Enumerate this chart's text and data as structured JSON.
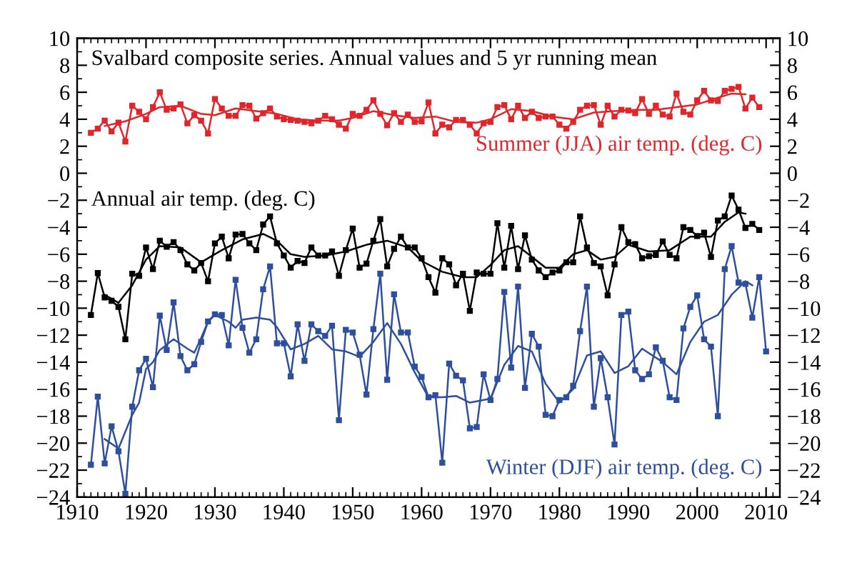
{
  "chart_data": {
    "type": "line",
    "title": "Svalbard composite series. Annual values and 5 yr running mean",
    "xlim": [
      1910,
      2012
    ],
    "xticks": [
      1910,
      1920,
      1930,
      1940,
      1950,
      1960,
      1970,
      1980,
      1990,
      2000,
      2010
    ],
    "ylim": [
      -24,
      10
    ],
    "yticks": [
      -24,
      -22,
      -20,
      -18,
      -16,
      -14,
      -12,
      -10,
      -8,
      -6,
      -4,
      -2,
      0,
      2,
      4,
      6,
      8,
      10
    ],
    "y2lim": [
      -24,
      10
    ],
    "y2ticks": [
      -24,
      -22,
      -20,
      -18,
      -16,
      -14,
      -12,
      -10,
      -8,
      -6,
      -4,
      -2,
      0,
      2,
      4,
      6,
      8,
      10
    ],
    "grid": false,
    "legend": false,
    "series": [
      {
        "name": "Summer (JJA) air temp. (deg. C)",
        "color": "#e0262b",
        "marker": "square",
        "x": [
          1912,
          1913,
          1914,
          1915,
          1916,
          1917,
          1918,
          1919,
          1920,
          1921,
          1922,
          1923,
          1924,
          1925,
          1926,
          1927,
          1928,
          1929,
          1930,
          1931,
          1932,
          1933,
          1934,
          1935,
          1936,
          1937,
          1938,
          1939,
          1940,
          1941,
          1942,
          1943,
          1944,
          1945,
          1946,
          1947,
          1948,
          1949,
          1950,
          1951,
          1952,
          1953,
          1954,
          1955,
          1956,
          1957,
          1958,
          1959,
          1960,
          1961,
          1962,
          1963,
          1964,
          1965,
          1966,
          1967,
          1968,
          1969,
          1970,
          1971,
          1972,
          1973,
          1974,
          1975,
          1976,
          1977,
          1978,
          1979,
          1980,
          1981,
          1982,
          1983,
          1984,
          1985,
          1986,
          1987,
          1988,
          1989,
          1990,
          1991,
          1992,
          1993,
          1994,
          1995,
          1996,
          1997,
          1998,
          1999,
          2000,
          2001,
          2002,
          2003,
          2004,
          2005,
          2006,
          2007,
          2008,
          2009
        ],
        "values": [
          3.0,
          3.3,
          3.9,
          3.1,
          3.75,
          2.35,
          5.0,
          4.55,
          4.0,
          4.9,
          6.0,
          4.7,
          4.8,
          5.1,
          3.7,
          4.3,
          3.9,
          2.95,
          5.5,
          4.8,
          4.25,
          4.25,
          5.05,
          5.0,
          4.05,
          4.45,
          4.8,
          4.2,
          4.0,
          3.95,
          3.9,
          3.8,
          3.7,
          3.9,
          4.25,
          4.0,
          3.6,
          3.3,
          4.4,
          4.25,
          4.7,
          5.4,
          4.4,
          3.55,
          4.45,
          3.8,
          4.35,
          3.8,
          3.85,
          5.25,
          2.95,
          3.6,
          3.4,
          3.95,
          3.95,
          3.6,
          2.95,
          3.7,
          3.8,
          4.9,
          5.05,
          4.0,
          5.0,
          4.1,
          4.55,
          4.1,
          4.2,
          4.2,
          3.6,
          3.3,
          3.8,
          4.7,
          5.0,
          5.05,
          3.6,
          5.0,
          4.2,
          4.7,
          4.65,
          4.45,
          5.5,
          4.4,
          5.0,
          4.35,
          4.2,
          5.9,
          4.55,
          4.35,
          5.4,
          6.1,
          5.4,
          5.35,
          6.1,
          6.25,
          6.4,
          4.8,
          5.6,
          4.9
        ]
      },
      {
        "color": "#e0262b",
        "marker": "none",
        "x": [
          1914,
          1917,
          1920,
          1922,
          1925,
          1928,
          1930,
          1933,
          1936,
          1939,
          1942,
          1945,
          1948,
          1950,
          1953,
          1956,
          1959,
          1962,
          1965,
          1968,
          1970,
          1973,
          1976,
          1979,
          1982,
          1985,
          1988,
          1991,
          1994,
          1997,
          2000,
          2003,
          2005,
          2007
        ],
        "values": [
          3.5,
          3.85,
          4.4,
          4.9,
          5.0,
          4.4,
          4.3,
          4.8,
          4.6,
          4.4,
          4.0,
          3.9,
          3.9,
          4.1,
          4.6,
          4.3,
          4.1,
          4.2,
          3.8,
          3.75,
          4.0,
          4.75,
          4.6,
          4.2,
          4.0,
          4.5,
          4.6,
          4.7,
          4.7,
          4.9,
          5.1,
          5.6,
          5.9,
          5.85
        ]
      },
      {
        "name": "Annual air temp. (deg. C)",
        "color": "#000000",
        "marker": "square",
        "x": [
          1912,
          1913,
          1914,
          1915,
          1916,
          1917,
          1918,
          1919,
          1920,
          1921,
          1922,
          1923,
          1924,
          1925,
          1926,
          1927,
          1928,
          1929,
          1930,
          1931,
          1932,
          1933,
          1934,
          1935,
          1936,
          1937,
          1938,
          1939,
          1940,
          1941,
          1942,
          1943,
          1944,
          1945,
          1946,
          1947,
          1948,
          1949,
          1950,
          1951,
          1952,
          1953,
          1954,
          1955,
          1956,
          1957,
          1958,
          1959,
          1960,
          1961,
          1962,
          1963,
          1964,
          1965,
          1966,
          1967,
          1968,
          1969,
          1970,
          1971,
          1972,
          1973,
          1974,
          1975,
          1976,
          1977,
          1978,
          1979,
          1980,
          1981,
          1982,
          1983,
          1984,
          1985,
          1986,
          1987,
          1988,
          1989,
          1990,
          1991,
          1992,
          1993,
          1994,
          1995,
          1996,
          1997,
          1998,
          1999,
          2000,
          2001,
          2002,
          2003,
          2004,
          2005,
          2006,
          2007,
          2008,
          2009
        ],
        "values": [
          -10.5,
          -7.4,
          -9.2,
          -9.45,
          -9.9,
          -12.3,
          -7.45,
          -7.6,
          -5.5,
          -7.1,
          -5.0,
          -5.45,
          -5.1,
          -5.7,
          -6.75,
          -7.2,
          -6.65,
          -8.0,
          -5.2,
          -4.7,
          -6.3,
          -4.55,
          -4.5,
          -5.2,
          -5.7,
          -3.8,
          -3.2,
          -5.2,
          -6.1,
          -7.0,
          -6.5,
          -6.65,
          -5.5,
          -6.1,
          -6.1,
          -5.8,
          -7.6,
          -5.7,
          -4.1,
          -7.0,
          -6.7,
          -5.0,
          -3.4,
          -6.9,
          -5.6,
          -4.7,
          -5.5,
          -5.5,
          -6.3,
          -7.7,
          -8.85,
          -6.3,
          -6.75,
          -8.3,
          -7.45,
          -10.2,
          -7.35,
          -7.45,
          -7.45,
          -3.7,
          -7.0,
          -3.9,
          -7.1,
          -4.6,
          -6.4,
          -7.2,
          -7.7,
          -7.35,
          -7.2,
          -6.6,
          -6.6,
          -3.2,
          -5.5,
          -6.65,
          -6.9,
          -9.05,
          -6.75,
          -4.0,
          -5.1,
          -5.25,
          -6.3,
          -6.15,
          -6.05,
          -5.05,
          -6.05,
          -6.3,
          -4.0,
          -4.2,
          -4.65,
          -4.4,
          -6.2,
          -3.5,
          -3.2,
          -1.65,
          -2.7,
          -4.05,
          -3.75,
          -4.2
        ]
      },
      {
        "color": "#000000",
        "marker": "none",
        "x": [
          1914,
          1916,
          1918,
          1920,
          1922,
          1925,
          1928,
          1931,
          1934,
          1937,
          1939,
          1941,
          1943,
          1946,
          1949,
          1952,
          1955,
          1958,
          1960,
          1963,
          1966,
          1968,
          1970,
          1972,
          1974,
          1976,
          1978,
          1980,
          1982,
          1984,
          1986,
          1988,
          1990,
          1993,
          1996,
          1999,
          2002,
          2004,
          2006,
          2007
        ],
        "values": [
          -9.0,
          -9.6,
          -8.3,
          -6.4,
          -5.4,
          -5.5,
          -6.6,
          -5.7,
          -4.9,
          -4.5,
          -5.0,
          -6.0,
          -6.2,
          -6.1,
          -5.8,
          -5.3,
          -5.0,
          -5.5,
          -6.5,
          -7.3,
          -7.7,
          -7.7,
          -6.8,
          -5.7,
          -5.4,
          -6.2,
          -7.0,
          -7.0,
          -6.0,
          -5.7,
          -6.4,
          -6.2,
          -5.3,
          -5.8,
          -5.7,
          -4.7,
          -4.7,
          -3.6,
          -2.9,
          -3.0
        ]
      },
      {
        "name": "Winter (DJF) air temp. (deg. C)",
        "color": "#2d4f9e",
        "marker": "square",
        "x": [
          1912,
          1913,
          1914,
          1915,
          1916,
          1917,
          1918,
          1919,
          1920,
          1921,
          1922,
          1923,
          1924,
          1925,
          1926,
          1927,
          1928,
          1929,
          1930,
          1931,
          1932,
          1933,
          1934,
          1935,
          1936,
          1937,
          1938,
          1939,
          1940,
          1941,
          1942,
          1943,
          1944,
          1945,
          1946,
          1947,
          1948,
          1949,
          1950,
          1951,
          1952,
          1953,
          1954,
          1955,
          1956,
          1957,
          1958,
          1959,
          1960,
          1961,
          1962,
          1963,
          1964,
          1965,
          1966,
          1967,
          1968,
          1969,
          1970,
          1971,
          1972,
          1973,
          1974,
          1975,
          1976,
          1977,
          1978,
          1979,
          1980,
          1981,
          1982,
          1983,
          1984,
          1985,
          1986,
          1987,
          1988,
          1989,
          1990,
          1991,
          1992,
          1993,
          1994,
          1995,
          1996,
          1997,
          1998,
          1999,
          2000,
          2001,
          2002,
          2003,
          2004,
          2005,
          2006,
          2007,
          2008,
          2009,
          2010
        ],
        "values": [
          -21.6,
          -16.55,
          -21.5,
          -18.75,
          -20.6,
          -23.75,
          -17.3,
          -14.6,
          -13.75,
          -15.85,
          -10.55,
          -13.1,
          -9.57,
          -13.55,
          -14.6,
          -14.15,
          -12.5,
          -10.98,
          -10.45,
          -10.5,
          -12.75,
          -7.9,
          -11.45,
          -13.3,
          -12.3,
          -8.6,
          -6.9,
          -12.6,
          -12.6,
          -15.05,
          -11.2,
          -13.9,
          -11.2,
          -11.7,
          -12.05,
          -11.3,
          -18.3,
          -11.6,
          -11.8,
          -13.45,
          -16.4,
          -11.55,
          -7.45,
          -15.3,
          -8.97,
          -11.8,
          -11.8,
          -14.33,
          -15.1,
          -16.6,
          -16.45,
          -21.45,
          -14.1,
          -15.0,
          -15.35,
          -18.9,
          -18.8,
          -14.9,
          -16.8,
          -15.25,
          -8.8,
          -14.4,
          -8.4,
          -15.9,
          -11.9,
          -12.85,
          -17.9,
          -18.0,
          -16.8,
          -16.6,
          -15.75,
          -11.7,
          -8.4,
          -17.3,
          -13.7,
          -16.6,
          -20.1,
          -10.5,
          -10.25,
          -14.6,
          -15.25,
          -14.9,
          -12.9,
          -13.9,
          -16.6,
          -16.8,
          -11.5,
          -9.9,
          -9.05,
          -12.3,
          -12.85,
          -18.0,
          -7.1,
          -5.4,
          -8.1,
          -8.2,
          -10.7,
          -7.7,
          -13.2
        ]
      },
      {
        "color": "#2d4f9e",
        "marker": "none",
        "x": [
          1914,
          1916,
          1918,
          1919,
          1920,
          1921,
          1922,
          1923,
          1924,
          1926,
          1927,
          1928,
          1929,
          1930,
          1932,
          1933,
          1934,
          1936,
          1938,
          1939,
          1941,
          1943,
          1945,
          1947,
          1949,
          1951,
          1953,
          1955,
          1957,
          1959,
          1961,
          1963,
          1965,
          1967,
          1970,
          1972,
          1974,
          1976,
          1978,
          1980,
          1982,
          1984,
          1986,
          1988,
          1990,
          1992,
          1995,
          1997,
          1999,
          2001,
          2003,
          2005,
          2007,
          2008
        ],
        "values": [
          -19.7,
          -20.4,
          -17.9,
          -17.0,
          -14.5,
          -14.0,
          -13.1,
          -12.7,
          -12.3,
          -13.0,
          -13.3,
          -12.2,
          -11.0,
          -10.5,
          -11.0,
          -11.45,
          -10.85,
          -10.7,
          -10.85,
          -11.4,
          -13.05,
          -12.65,
          -12.05,
          -13.05,
          -13.2,
          -13.6,
          -12.5,
          -11.1,
          -12.65,
          -14.75,
          -16.6,
          -16.6,
          -16.5,
          -17.0,
          -16.7,
          -14.2,
          -12.8,
          -13.2,
          -15.6,
          -17.0,
          -16.0,
          -13.5,
          -13.2,
          -14.8,
          -14.3,
          -13.0,
          -14.0,
          -14.9,
          -12.5,
          -11.0,
          -10.5,
          -9.0,
          -8.0,
          -8.3
        ]
      }
    ]
  }
}
